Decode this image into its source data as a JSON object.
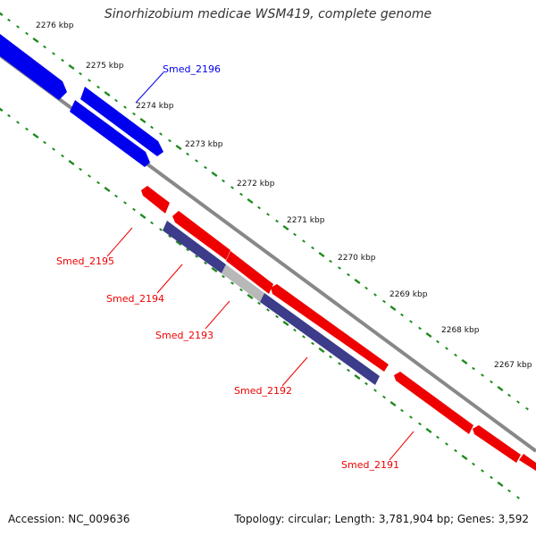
{
  "title": "Sinorhizobium medicae WSM419, complete genome",
  "accession": "Accession: NC_009636",
  "topology_info": "Topology: circular; Length: 3,781,904 bp; Genes: 3,592",
  "ticks": [
    "2276 kbp",
    "2275 kbp",
    "2274 kbp",
    "2273 kbp",
    "2272 kbp",
    "2271 kbp",
    "2270 kbp",
    "2269 kbp",
    "2268 kbp",
    "2267 kbp"
  ],
  "genes": [
    {
      "id": "smed-2196",
      "label": "Smed_2196",
      "strand": "forward",
      "color": "#0000ee"
    },
    {
      "id": "smed-2195",
      "label": "Smed_2195",
      "strand": "reverse",
      "color": "#ee0000"
    },
    {
      "id": "smed-2194",
      "label": "Smed_2194",
      "strand": "reverse",
      "color": "#ee0000"
    },
    {
      "id": "smed-2193",
      "label": "Smed_2193",
      "strand": "reverse",
      "color": "#ee0000"
    },
    {
      "id": "smed-2192",
      "label": "Smed_2192",
      "strand": "reverse",
      "color": "#ee0000"
    },
    {
      "id": "smed-2191",
      "label": "Smed_2191",
      "strand": "reverse",
      "color": "#ee0000"
    }
  ],
  "colors": {
    "forward_cds": "#0000ee",
    "reverse_cds": "#ee0000",
    "gene_track": "#3c3c8a",
    "backbone": "#808080",
    "tick_marks": "#1a8a1a"
  }
}
